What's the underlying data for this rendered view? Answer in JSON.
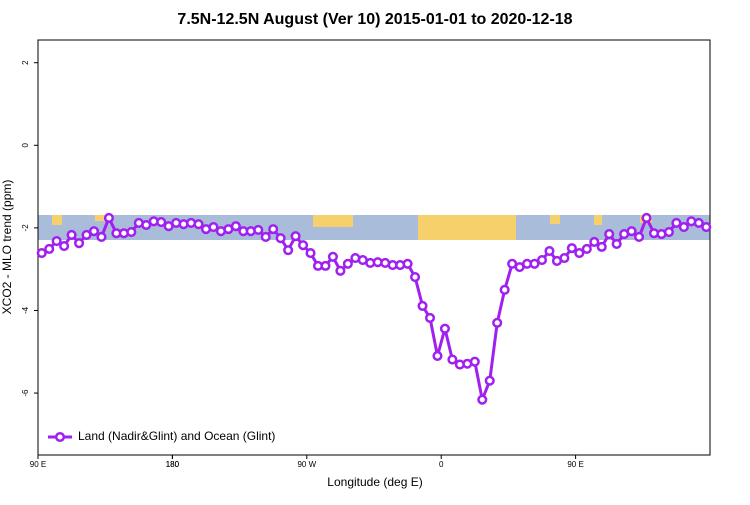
{
  "chart_data": {
    "type": "line",
    "title": "7.5N-12.5N August (Ver 10)   2015-01-01 to 2020-12-18",
    "x_label": "Longitude (deg E)",
    "y_label": "XCO2 - MLO trend (ppm)",
    "x": [
      92.5,
      97.5,
      102.5,
      107.5,
      112.5,
      117.5,
      122.5,
      127.5,
      132.5,
      137.5,
      142.5,
      147.5,
      152.5,
      157.5,
      162.5,
      167.5,
      172.5,
      177.5,
      182.5,
      187.5,
      192.5,
      197.5,
      202.5,
      207.5,
      212.5,
      217.5,
      222.5,
      227.5,
      232.5,
      237.5,
      242.5,
      247.5,
      252.5,
      257.5,
      262.5,
      267.5,
      272.5,
      277.5,
      282.5,
      287.5,
      292.5,
      297.5,
      302.5,
      307.5,
      312.5,
      317.5,
      322.5,
      327.5,
      332.5,
      337.5,
      342.5,
      347.5,
      352.5,
      357.5,
      362.5,
      367.5,
      372.5,
      377.5,
      382.5,
      387.5,
      392.5,
      397.5,
      402.5,
      407.5,
      412.5,
      417.5,
      422.5,
      427.5,
      432.5,
      437.5,
      442.5,
      447.5,
      452.5,
      457.5,
      462.5,
      467.5,
      472.5,
      477.5,
      482.5,
      487.5,
      492.5,
      497.5,
      502.5,
      507.5,
      512.5,
      517.5,
      522.5,
      527.5,
      532.5,
      537.5
    ],
    "series": [
      {
        "name": "Land (Nadir&Glint) and Ocean (Glint)",
        "color": "#a020f0",
        "values": [
          -2.61,
          -2.51,
          -2.32,
          -2.44,
          -2.17,
          -2.37,
          -2.17,
          -2.08,
          -2.22,
          -1.76,
          -2.13,
          -2.13,
          -2.1,
          -1.88,
          -1.93,
          -1.84,
          -1.86,
          -1.96,
          -1.88,
          -1.91,
          -1.88,
          -1.91,
          -2.03,
          -1.98,
          -2.08,
          -2.03,
          -1.96,
          -2.08,
          -2.08,
          -2.05,
          -2.22,
          -2.03,
          -2.25,
          -2.54,
          -2.2,
          -2.42,
          -2.61,
          -2.92,
          -2.92,
          -2.7,
          -3.04,
          -2.87,
          -2.73,
          -2.78,
          -2.85,
          -2.83,
          -2.85,
          -2.9,
          -2.9,
          -2.87,
          -3.19,
          -3.89,
          -4.18,
          -5.1,
          -4.44,
          -5.19,
          -5.31,
          -5.29,
          -5.24,
          -6.16,
          -5.7,
          -4.3,
          -3.5,
          -2.87,
          -2.95,
          -2.87,
          -2.87,
          -2.78,
          -2.56,
          -2.8,
          -2.73,
          -2.49,
          -2.61,
          -2.51,
          -2.34,
          -2.46,
          -2.15,
          -2.39,
          -2.15,
          -2.08,
          -2.22,
          -1.76,
          -2.13,
          -2.15,
          -2.1,
          -1.88,
          -1.98,
          -1.84,
          -1.88,
          -1.98
        ]
      }
    ],
    "xlim": [
      90,
      540
    ],
    "xticks": [
      {
        "value": 90,
        "label": "90 E"
      },
      180,
      {
        "value": 270,
        "label": "90 W"
      },
      {
        "value": 360,
        "label": "0"
      },
      {
        "value": 450,
        "label": "90 E"
      },
      180.0001
    ],
    "ylim": [
      -7.5,
      2.55
    ],
    "yticks": [
      -6,
      -4,
      -2,
      0,
      2
    ],
    "legend": "bottom-left"
  }
}
